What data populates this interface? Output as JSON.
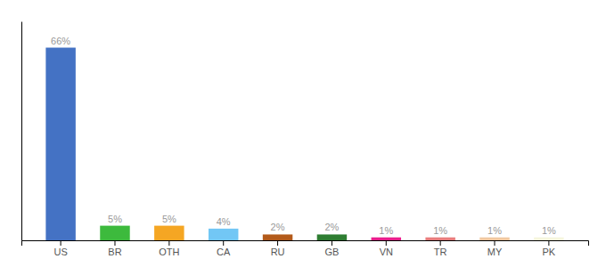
{
  "chart_data": {
    "type": "bar",
    "categories": [
      "US",
      "BR",
      "OTH",
      "CA",
      "RU",
      "GB",
      "VN",
      "TR",
      "MY",
      "PK"
    ],
    "values": [
      66,
      5,
      5,
      4,
      2,
      2,
      1,
      1,
      1,
      1
    ],
    "value_labels": [
      "66%",
      "5%",
      "5%",
      "4%",
      "2%",
      "2%",
      "1%",
      "1%",
      "1%",
      "1%"
    ],
    "colors": [
      "#4472c4",
      "#3dba3d",
      "#f5a623",
      "#72c7f5",
      "#b35a1a",
      "#2e7d32",
      "#e91e8c",
      "#e87d7d",
      "#f0c8a0",
      "#f5f5dc"
    ],
    "ylim": [
      0,
      75
    ],
    "tick_labels": "x",
    "data_labels": true
  }
}
